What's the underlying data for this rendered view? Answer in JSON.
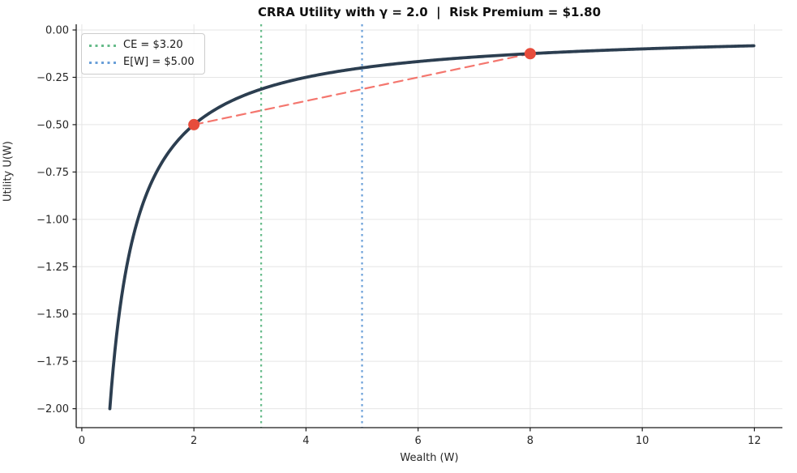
{
  "figure": {
    "background_color": "#ffffff"
  },
  "chart_data": {
    "type": "line",
    "title": "CRRA Utility with γ = 2.0  |  Risk Premium = $1.80",
    "xlabel": "Wealth (W)",
    "ylabel": "Utility U(W)",
    "xlim": [
      -0.1,
      12.5
    ],
    "ylim": [
      -2.1,
      0.03
    ],
    "grid": true,
    "grid_color": "#e5e5e5",
    "x_ticks": [
      0,
      2,
      4,
      6,
      8,
      10,
      12
    ],
    "x_tick_labels": [
      "0",
      "2",
      "4",
      "6",
      "8",
      "10",
      "12"
    ],
    "y_ticks": [
      0,
      -0.25,
      -0.5,
      -0.75,
      -1.0,
      -1.25,
      -1.5,
      -1.75,
      -2.0
    ],
    "y_tick_labels": [
      "0.00",
      "−0.25",
      "−0.50",
      "−0.75",
      "−1.00",
      "−1.25",
      "−1.50",
      "−1.75",
      "−2.00"
    ],
    "utility_curve": {
      "model": "CRRA",
      "gamma": 2.0,
      "w_range": [
        0.5,
        12
      ],
      "color": "#2c3e50",
      "linewidth": 3.8,
      "key_points": [
        [
          0.5,
          -2.0
        ],
        [
          1.0,
          -1.0
        ],
        [
          2.0,
          -0.5
        ],
        [
          3.0,
          -0.3333
        ],
        [
          4.0,
          -0.25
        ],
        [
          5.0,
          -0.2
        ],
        [
          6.0,
          -0.1667
        ],
        [
          8.0,
          -0.125
        ],
        [
          10.0,
          -0.1
        ],
        [
          12.0,
          -0.0833
        ]
      ]
    },
    "lottery_points": [
      {
        "w": 2.0,
        "u": -0.5
      },
      {
        "w": 8.0,
        "u": -0.125
      }
    ],
    "lottery_point_color": "#e74c3c",
    "chord": {
      "from": [
        2.0,
        -0.5
      ],
      "to": [
        8.0,
        -0.125
      ],
      "color": "#f4766e",
      "style": "dashed",
      "linewidth": 2.2
    },
    "vlines": [
      {
        "x": 3.2,
        "label": "CE = $3.20",
        "color": "#66bb8a",
        "style": "dotted"
      },
      {
        "x": 5.0,
        "label": "E[W] = $5.00",
        "color": "#6a9fd8",
        "style": "dotted"
      }
    ],
    "legend": {
      "position": "upper left",
      "entries": [
        {
          "label": "CE = $3.20",
          "color": "#66bb8a"
        },
        {
          "label": "E[W] = $5.00",
          "color": "#6a9fd8"
        }
      ]
    },
    "annotations": {
      "risk_premium": "$1.80",
      "certainty_equivalent": "$3.20",
      "expected_wealth": "$5.00",
      "gamma": "2.0"
    }
  }
}
